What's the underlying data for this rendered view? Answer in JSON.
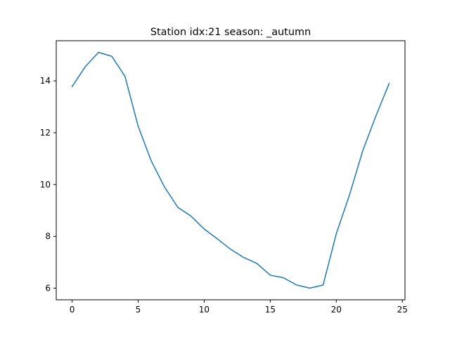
{
  "chart_data": {
    "type": "line",
    "title": "Station idx:21 season: _autumn",
    "xlabel": "",
    "ylabel": "",
    "xlim": [
      -1.2,
      25.2
    ],
    "ylim": [
      5.55,
      15.55
    ],
    "x_ticks": [
      0,
      5,
      10,
      15,
      20,
      25
    ],
    "y_ticks": [
      6,
      8,
      10,
      12,
      14
    ],
    "grid": false,
    "series": [
      {
        "color": "#1f77b4",
        "x": [
          0,
          1,
          2,
          3,
          4,
          5,
          6,
          7,
          8,
          9,
          10,
          11,
          12,
          13,
          14,
          15,
          16,
          17,
          18,
          19,
          20,
          21,
          22,
          23,
          24
        ],
        "values": [
          13.78,
          14.55,
          15.1,
          14.95,
          14.18,
          12.25,
          10.9,
          9.9,
          9.12,
          8.78,
          8.28,
          7.9,
          7.5,
          7.18,
          6.95,
          6.5,
          6.4,
          6.12,
          6.0,
          6.12,
          8.1,
          9.6,
          11.3,
          12.65,
          13.9
        ]
      }
    ]
  }
}
